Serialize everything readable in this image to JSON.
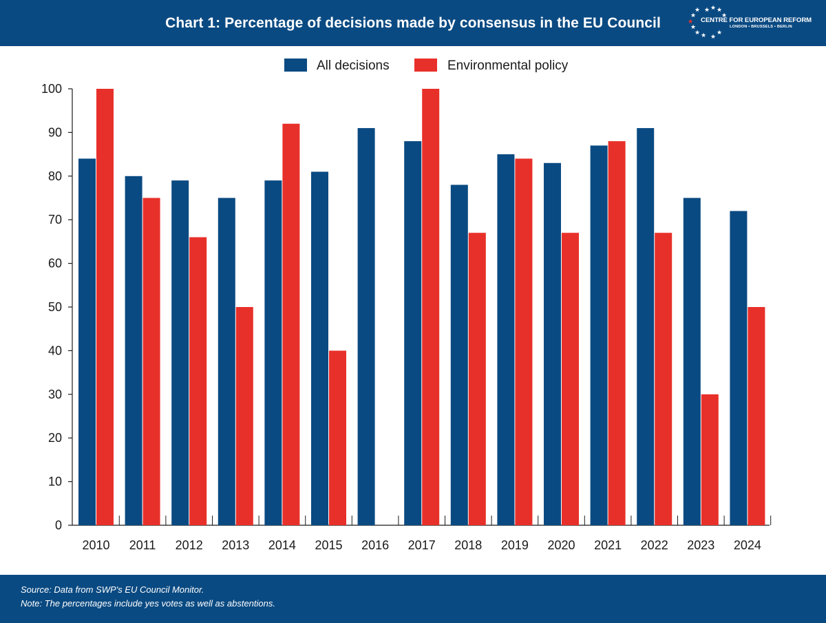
{
  "header": {
    "title": "Chart 1: Percentage of decisions made by consensus in the EU Council"
  },
  "logo": {
    "name": "CENTRE FOR EUROPEAN REFORM",
    "cities": "LONDON • BRUSSELS • BERLIN"
  },
  "colors": {
    "header_bg": "#0a4a82",
    "series_all": "#0a4a82",
    "series_env": "#e8302a"
  },
  "chart_data": {
    "type": "bar",
    "title": "Chart 1: Percentage of decisions made by consensus in the EU Council",
    "xlabel": "",
    "ylabel": "",
    "ylim": [
      0,
      100
    ],
    "yticks": [
      0,
      10,
      20,
      30,
      40,
      50,
      60,
      70,
      80,
      90,
      100
    ],
    "legend_position": "top-center",
    "grid": false,
    "categories": [
      "2010",
      "2011",
      "2012",
      "2013",
      "2014",
      "2015",
      "2016",
      "2017",
      "2018",
      "2019",
      "2020",
      "2021",
      "2022",
      "2023",
      "2024"
    ],
    "series": [
      {
        "name": "All decisions",
        "color": "#0a4a82",
        "values": [
          84,
          80,
          79,
          75,
          79,
          81,
          91,
          88,
          78,
          85,
          83,
          87,
          91,
          75,
          72
        ]
      },
      {
        "name": "Environmental policy",
        "color": "#e8302a",
        "values": [
          100,
          75,
          66,
          50,
          92,
          40,
          0,
          100,
          67,
          84,
          67,
          88,
          67,
          30,
          50
        ]
      }
    ]
  },
  "footer": {
    "source": "Source: Data from SWP's EU Council Monitor.",
    "note": "Note: The percentages include yes votes as well as abstentions."
  }
}
